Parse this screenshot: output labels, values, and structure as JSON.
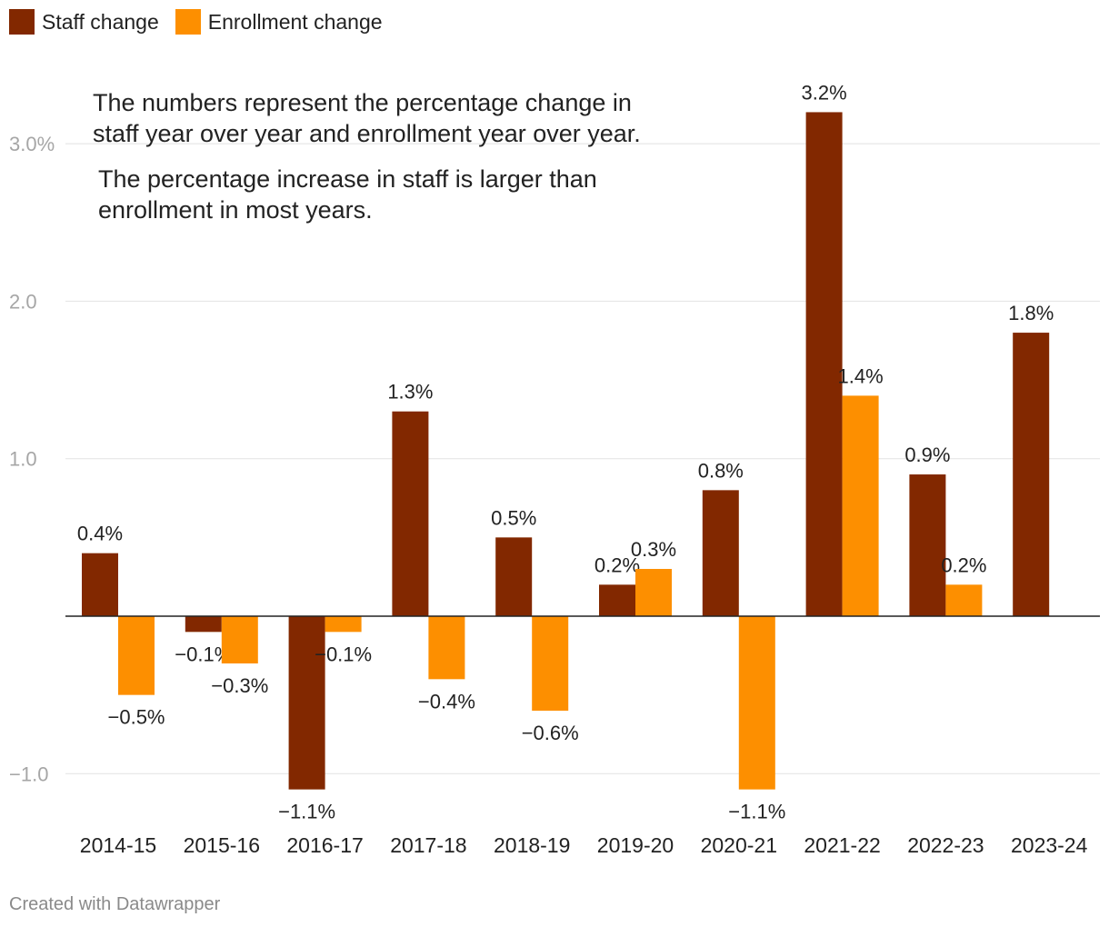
{
  "chart_data": {
    "type": "bar",
    "categories": [
      "2014-15",
      "2015-16",
      "2016-17",
      "2017-18",
      "2018-19",
      "2019-20",
      "2020-21",
      "2021-22",
      "2022-23",
      "2023-24"
    ],
    "series": [
      {
        "name": "Staff change",
        "color": "#822800",
        "values": [
          0.4,
          -0.1,
          -1.1,
          1.3,
          0.5,
          0.2,
          0.8,
          3.2,
          0.9,
          1.8
        ],
        "labels": [
          "0.4%",
          "−0.1%",
          "−1.1%",
          "1.3%",
          "0.5%",
          "0.2%",
          "0.8%",
          "3.2%",
          "0.9%",
          "1.8%"
        ]
      },
      {
        "name": "Enrollment change",
        "color": "#fd8f00",
        "values": [
          -0.5,
          -0.3,
          -0.1,
          -0.4,
          -0.6,
          0.3,
          -1.1,
          1.4,
          0.2,
          null
        ],
        "labels": [
          "−0.5%",
          "−0.3%",
          "−0.1%",
          "−0.4%",
          "−0.6%",
          "0.3%",
          "−1.1%",
          "1.4%",
          "0.2%",
          null
        ]
      }
    ],
    "y_ticks": [
      3.0,
      2.0,
      1.0,
      -1.0
    ],
    "y_tick_labels": [
      "3.0%",
      "2.0",
      "1.0",
      "−1.0"
    ],
    "ylim": [
      -1.2,
      3.3
    ],
    "grid": true,
    "legend": "top-left"
  },
  "annotations": [
    "The numbers represent the percentage change in staff year over year and enrollment year over year.",
    "The percentage increase in staff is larger than enrollment in most years."
  ],
  "credit": "Created with Datawrapper"
}
